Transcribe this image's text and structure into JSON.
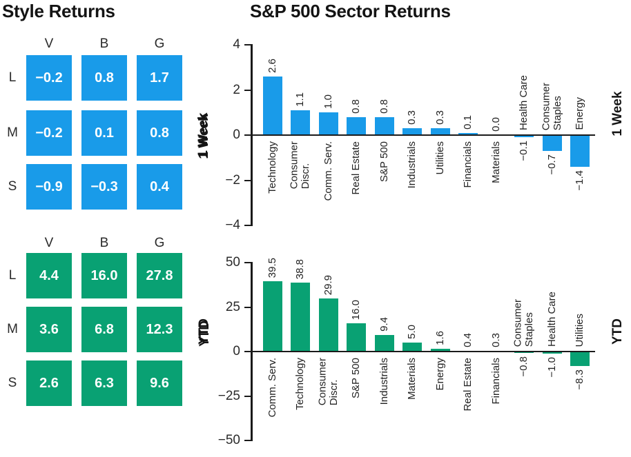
{
  "titles": {
    "style": "Style Returns",
    "sector": "S&P 500 Sector Returns"
  },
  "accent_colors": {
    "week_blue": "#199BE9",
    "ytd_green": "#09A173"
  },
  "chart_data": [
    {
      "type": "heatmap",
      "group_title": "Style Returns",
      "period": "1 Week",
      "columns": [
        "V",
        "B",
        "G"
      ],
      "rows": [
        "L",
        "M",
        "S"
      ],
      "values": [
        [
          -0.2,
          0.8,
          1.7
        ],
        [
          -0.2,
          0.1,
          0.8
        ],
        [
          -0.9,
          -0.3,
          0.4
        ]
      ],
      "cell_color": "#199BE9",
      "text_color": "#FFFFFF"
    },
    {
      "type": "heatmap",
      "group_title": "Style Returns",
      "period": "YTD",
      "columns": [
        "V",
        "B",
        "G"
      ],
      "rows": [
        "L",
        "M",
        "S"
      ],
      "values": [
        [
          4.4,
          16.0,
          27.8
        ],
        [
          3.6,
          6.8,
          12.3
        ],
        [
          2.6,
          6.3,
          9.6
        ]
      ],
      "cell_color": "#09A173",
      "text_color": "#FFFFFF"
    },
    {
      "type": "bar",
      "group_title": "S&P 500 Sector Returns",
      "period": "1 Week",
      "categories": [
        "Technology",
        "Consumer\nDiscr.",
        "Comm. Serv.",
        "Real Estate",
        "S&P 500",
        "Industrials",
        "Utilities",
        "Financials",
        "Materials",
        "Health Care",
        "Consumer\nStaples",
        "Energy"
      ],
      "values": [
        2.6,
        1.1,
        1.0,
        0.8,
        0.8,
        0.3,
        0.3,
        0.1,
        0.0,
        -0.1,
        -0.7,
        -1.4
      ],
      "bar_color": "#199BE9",
      "ylim": [
        -4,
        4
      ],
      "yticks": [
        4,
        2,
        0,
        -2,
        -4
      ],
      "grid": false,
      "legend_position": "none",
      "value_label_decimals": 1
    },
    {
      "type": "bar",
      "group_title": "S&P 500 Sector Returns",
      "period": "YTD",
      "categories": [
        "Comm. Serv.",
        "Technology",
        "Consumer\nDiscr.",
        "S&P 500",
        "Industrials",
        "Materials",
        "Energy",
        "Real Estate",
        "Financials",
        "Consumer\nStaples",
        "Health Care",
        "Utilities"
      ],
      "values": [
        39.5,
        38.8,
        29.9,
        16.0,
        9.4,
        5.0,
        1.6,
        0.4,
        0.3,
        -0.8,
        -1.0,
        -8.3
      ],
      "bar_color": "#09A173",
      "ylim": [
        -50,
        50
      ],
      "yticks": [
        50,
        25,
        0,
        -25,
        -50
      ],
      "grid": false,
      "legend_position": "none",
      "value_label_decimals": 1
    }
  ]
}
